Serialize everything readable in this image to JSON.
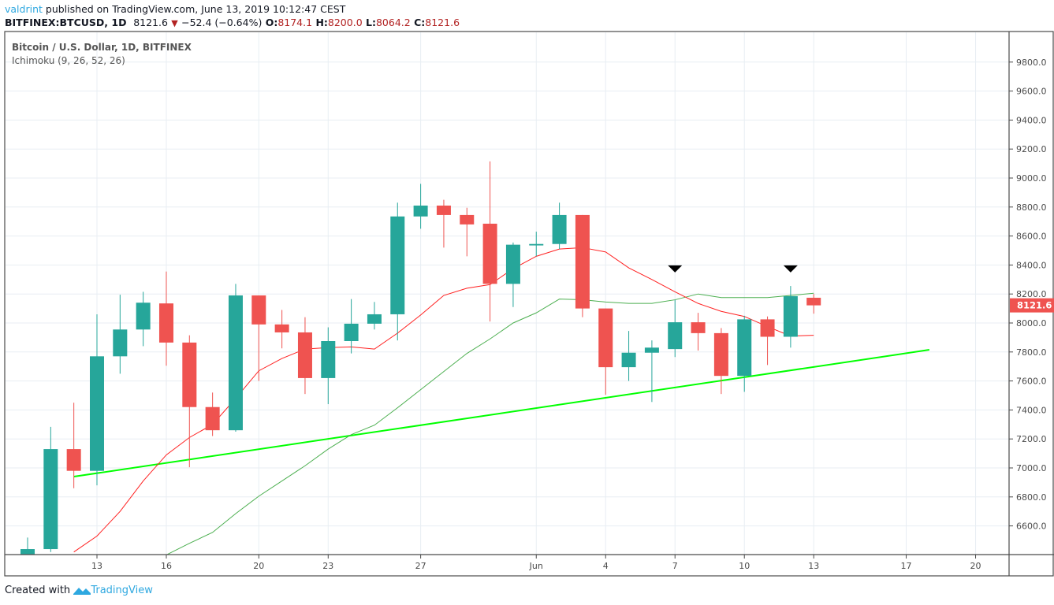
{
  "header": {
    "author": "valdrint",
    "published": "published on TradingView.com, June 13, 2019 10:12:47 CEST",
    "symbol": "BITFINEX:BTCUSD, 1D",
    "last": "8121.6",
    "change": "−52.4 (−0.64%)",
    "o_label": "O:",
    "o": "8174.1",
    "h_label": "H:",
    "h": "8200.0",
    "l_label": "L:",
    "l": "8064.2",
    "c_label": "C:",
    "c": "8121.6"
  },
  "legend": {
    "title": "Bitcoin / U.S. Dollar, 1D, BITFINEX",
    "indicator": "Ichimoku (9, 26, 52, 26)"
  },
  "footer": {
    "created_with": "Created with",
    "brand": "TradingView"
  },
  "colors": {
    "up": "#26a69a",
    "down": "#ef5350",
    "tenkan": "#ff2020",
    "kijun": "#4caf50",
    "trendline": "#00ff00",
    "marker": "#000000",
    "price_label": "#ef5350"
  },
  "chart_data": {
    "type": "candlestick",
    "title": "Bitcoin / U.S. Dollar, 1D, BITFINEX",
    "ylim": [
      6400,
      9900
    ],
    "y_ticks": [
      "6600.0",
      "6800.0",
      "7000.0",
      "7200.0",
      "7400.0",
      "7600.0",
      "7800.0",
      "8000.0",
      "8200.0",
      "8400.0",
      "8600.0",
      "8800.0",
      "9000.0",
      "9200.0",
      "9400.0",
      "9600.0",
      "9800.0"
    ],
    "x_ticks": [
      {
        "label": "13",
        "date": "2019-05-13"
      },
      {
        "label": "16",
        "date": "2019-05-16"
      },
      {
        "label": "20",
        "date": "2019-05-20"
      },
      {
        "label": "23",
        "date": "2019-05-23"
      },
      {
        "label": "27",
        "date": "2019-05-27"
      },
      {
        "label": "Jun",
        "date": "2019-06-01"
      },
      {
        "label": "4",
        "date": "2019-06-04"
      },
      {
        "label": "7",
        "date": "2019-06-07"
      },
      {
        "label": "10",
        "date": "2019-06-10"
      },
      {
        "label": "13",
        "date": "2019-06-13"
      },
      {
        "label": "17",
        "date": "2019-06-17"
      },
      {
        "label": "20",
        "date": "2019-06-20"
      }
    ],
    "grid": true,
    "last_price_label": "8121.6",
    "candles": [
      {
        "date": "2019-05-10",
        "o": 6400,
        "h": 6520,
        "l": 6350,
        "c": 6440
      },
      {
        "date": "2019-05-11",
        "o": 6440,
        "h": 7283,
        "l": 6420,
        "c": 7130
      },
      {
        "date": "2019-05-12",
        "o": 7130,
        "h": 7450,
        "l": 6860,
        "c": 6980
      },
      {
        "date": "2019-05-13",
        "o": 6980,
        "h": 8060,
        "l": 6880,
        "c": 7770
      },
      {
        "date": "2019-05-14",
        "o": 7770,
        "h": 8195,
        "l": 7650,
        "c": 7955
      },
      {
        "date": "2019-05-15",
        "o": 7955,
        "h": 8215,
        "l": 7840,
        "c": 8140
      },
      {
        "date": "2019-05-16",
        "o": 8135,
        "h": 8355,
        "l": 7705,
        "c": 7865
      },
      {
        "date": "2019-05-17",
        "o": 7865,
        "h": 7915,
        "l": 7005,
        "c": 7420
      },
      {
        "date": "2019-05-18",
        "o": 7420,
        "h": 7520,
        "l": 7220,
        "c": 7260
      },
      {
        "date": "2019-05-19",
        "o": 7260,
        "h": 8270,
        "l": 7250,
        "c": 8190
      },
      {
        "date": "2019-05-20",
        "o": 8190,
        "h": 8190,
        "l": 7600,
        "c": 7990
      },
      {
        "date": "2019-05-21",
        "o": 7990,
        "h": 8090,
        "l": 7825,
        "c": 7935
      },
      {
        "date": "2019-05-22",
        "o": 7935,
        "h": 8040,
        "l": 7510,
        "c": 7620
      },
      {
        "date": "2019-05-23",
        "o": 7620,
        "h": 7970,
        "l": 7440,
        "c": 7875
      },
      {
        "date": "2019-05-24",
        "o": 7875,
        "h": 8165,
        "l": 7790,
        "c": 7995
      },
      {
        "date": "2019-05-25",
        "o": 7995,
        "h": 8145,
        "l": 7955,
        "c": 8060
      },
      {
        "date": "2019-05-26",
        "o": 8060,
        "h": 8830,
        "l": 7880,
        "c": 8735
      },
      {
        "date": "2019-05-27",
        "o": 8735,
        "h": 8960,
        "l": 8650,
        "c": 8810
      },
      {
        "date": "2019-05-28",
        "o": 8810,
        "h": 8850,
        "l": 8520,
        "c": 8745
      },
      {
        "date": "2019-05-29",
        "o": 8745,
        "h": 8795,
        "l": 8460,
        "c": 8680
      },
      {
        "date": "2019-05-30",
        "o": 8685,
        "h": 9115,
        "l": 8010,
        "c": 8270
      },
      {
        "date": "2019-05-31",
        "o": 8270,
        "h": 8555,
        "l": 8110,
        "c": 8540
      },
      {
        "date": "2019-06-01",
        "o": 8535,
        "h": 8630,
        "l": 8460,
        "c": 8545
      },
      {
        "date": "2019-06-02",
        "o": 8545,
        "h": 8830,
        "l": 8510,
        "c": 8745
      },
      {
        "date": "2019-06-03",
        "o": 8745,
        "h": 8745,
        "l": 8040,
        "c": 8100
      },
      {
        "date": "2019-06-04",
        "o": 8100,
        "h": 8100,
        "l": 7505,
        "c": 7695
      },
      {
        "date": "2019-06-05",
        "o": 7695,
        "h": 7945,
        "l": 7600,
        "c": 7795
      },
      {
        "date": "2019-06-06",
        "o": 7795,
        "h": 7880,
        "l": 7455,
        "c": 7830
      },
      {
        "date": "2019-06-07",
        "o": 7820,
        "h": 8160,
        "l": 7765,
        "c": 8005
      },
      {
        "date": "2019-06-08",
        "o": 8005,
        "h": 8070,
        "l": 7810,
        "c": 7930
      },
      {
        "date": "2019-06-09",
        "o": 7930,
        "h": 7965,
        "l": 7510,
        "c": 7635
      },
      {
        "date": "2019-06-10",
        "o": 7635,
        "h": 8050,
        "l": 7525,
        "c": 8025
      },
      {
        "date": "2019-06-11",
        "o": 8025,
        "h": 8045,
        "l": 7710,
        "c": 7905
      },
      {
        "date": "2019-06-12",
        "o": 7905,
        "h": 8255,
        "l": 7830,
        "c": 8185
      },
      {
        "date": "2019-06-13",
        "o": 8174.1,
        "h": 8200.0,
        "l": 8064.2,
        "c": 8121.6
      }
    ],
    "tenkan_start": "2019-05-12",
    "tenkan": [
      6420,
      6530,
      6700,
      6910,
      7090,
      7210,
      7300,
      7480,
      7670,
      7755,
      7820,
      7830,
      7835,
      7820,
      7930,
      8055,
      8190,
      8240,
      8265,
      8375,
      8460,
      8510,
      8520,
      8490,
      8380,
      8300,
      8215,
      8135,
      8080,
      8045,
      7975,
      7910,
      7915
    ],
    "kijun_start": "2019-05-16",
    "kijun": [
      6400,
      6480,
      6555,
      6685,
      6805,
      6910,
      7015,
      7130,
      7230,
      7295,
      7415,
      7540,
      7665,
      7790,
      7890,
      8000,
      8070,
      8165,
      8160,
      8145,
      8135,
      8135,
      8160,
      8200,
      8175,
      8175,
      8175,
      8190,
      8205
    ],
    "trendline": [
      {
        "date": "2019-05-12",
        "price": 6940
      },
      {
        "date": "2019-06-18",
        "price": 7815
      }
    ],
    "markers": [
      {
        "date": "2019-06-07",
        "price": 8370,
        "shape": "arrow-down"
      },
      {
        "date": "2019-06-12",
        "price": 8370,
        "shape": "arrow-down"
      }
    ]
  }
}
